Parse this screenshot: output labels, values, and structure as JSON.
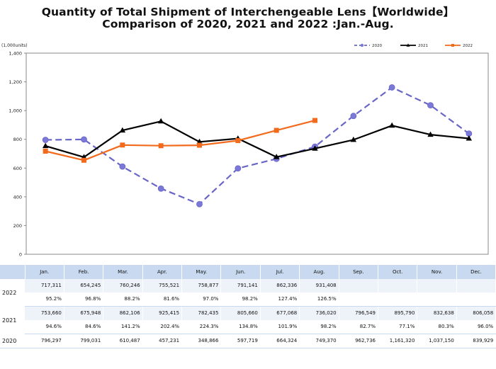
{
  "titles": {
    "line1": "Quantity of Total Shipment of Interchengeable Lens【Worldwide】",
    "line2": "Comparison of 2020, 2021 and 2022 :Jan.-Aug."
  },
  "chart_data": {
    "type": "line",
    "title": "Quantity of Total Shipment of Interchengeable Lens【Worldwide】 Comparison of 2020, 2021 and 2022 :Jan.-Aug.",
    "unit_label": "(1,000units)",
    "categories": [
      "Jan.",
      "Feb.",
      "Mar.",
      "Apr.",
      "May.",
      "Jun.",
      "Jul.",
      "Aug.",
      "Sep.",
      "Oct.",
      "Nov.",
      "Dec."
    ],
    "ylim": [
      0,
      1400
    ],
    "yticks": [
      "0",
      "200",
      "400",
      "600",
      "800",
      "1,000",
      "1,200",
      "1,400"
    ],
    "ytick_values": [
      0,
      200,
      400,
      600,
      800,
      1000,
      1200,
      1400
    ],
    "grid": false,
    "legend_position": "top-right",
    "series": [
      {
        "name": "2020",
        "color": "#6a66c8",
        "style": "dashed",
        "marker": "circle",
        "values": [
          796.297,
          799.031,
          610.487,
          457.231,
          348.866,
          597.719,
          664.324,
          749.37,
          962.736,
          1161.32,
          1037.15,
          839.929
        ]
      },
      {
        "name": "2021",
        "color": "#000000",
        "style": "solid",
        "marker": "triangle",
        "values": [
          753.66,
          675.948,
          862.106,
          925.415,
          782.435,
          805.66,
          677.068,
          736.02,
          796.549,
          895.79,
          832.638,
          806.058
        ]
      },
      {
        "name": "2022",
        "color": "#f26b1d",
        "style": "solid",
        "marker": "square",
        "values": [
          717.311,
          654.245,
          760.246,
          755.521,
          758.877,
          791.141,
          862.336,
          931.408,
          null,
          null,
          null,
          null
        ]
      }
    ]
  },
  "table": {
    "headers": [
      "Jan.",
      "Feb.",
      "Mar.",
      "Apr.",
      "May.",
      "Jun.",
      "Jul.",
      "Aug.",
      "Sep.",
      "Oct.",
      "Nov.",
      "Dec."
    ],
    "rows": [
      {
        "year": "2022",
        "units": [
          "717,311",
          "654,245",
          "760,246",
          "755,521",
          "758,877",
          "791,141",
          "862,336",
          "931,408",
          "",
          "",
          "",
          ""
        ],
        "ratio": [
          "95.2%",
          "96.8%",
          "88.2%",
          "81.6%",
          "97.0%",
          "98.2%",
          "127.4%",
          "126.5%",
          "",
          "",
          "",
          ""
        ]
      },
      {
        "year": "2021",
        "units": [
          "753,660",
          "675,948",
          "862,106",
          "925,415",
          "782,435",
          "805,660",
          "677,068",
          "736,020",
          "796,549",
          "895,790",
          "832,638",
          "806,058"
        ],
        "ratio": [
          "94.6%",
          "84.6%",
          "141.2%",
          "202.4%",
          "224.3%",
          "134.8%",
          "101.9%",
          "98.2%",
          "82.7%",
          "77.1%",
          "80.3%",
          "96.0%"
        ]
      },
      {
        "year": "2020",
        "units": [
          "796,297",
          "799,031",
          "610,487",
          "457,231",
          "348,866",
          "597,719",
          "664,324",
          "749,370",
          "962,736",
          "1,161,320",
          "1,037,150",
          "839,929"
        ]
      }
    ]
  }
}
